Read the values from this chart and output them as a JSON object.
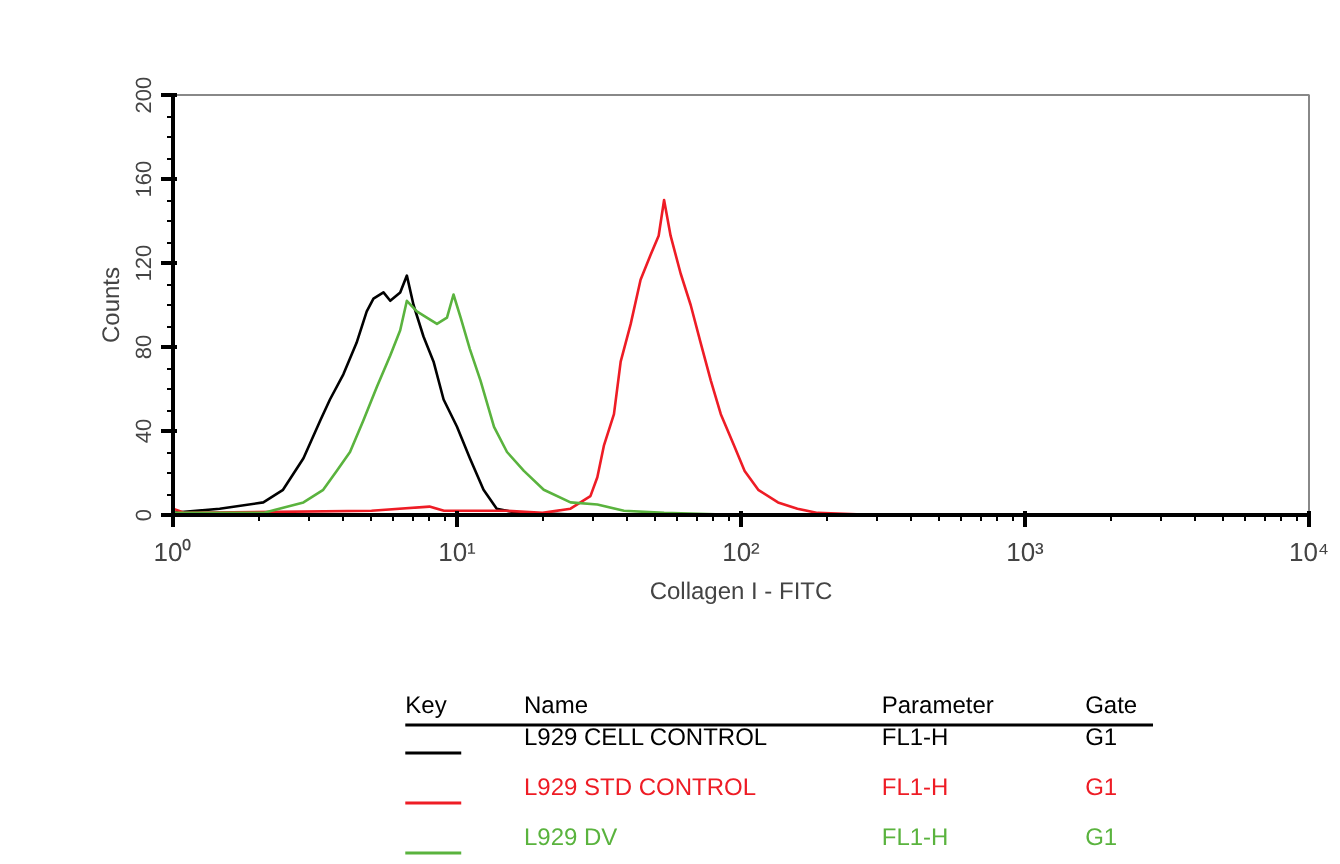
{
  "chart_data": {
    "type": "line",
    "xlabel": "Collagen I - FITC",
    "ylabel": "Counts",
    "log": "x",
    "grid": false,
    "legend": "bottom",
    "legend_title": "Key",
    "xlim": [
      1,
      10000
    ],
    "ylim": [
      0,
      200
    ],
    "xticks": [
      {
        "value": 1,
        "label": "10⁰"
      },
      {
        "value": 10,
        "label": "10¹"
      },
      {
        "value": 100,
        "label": "10²"
      },
      {
        "value": 1000,
        "label": "10³"
      },
      {
        "value": 10000,
        "label": "10⁴"
      }
    ],
    "yticks": [
      0,
      40,
      80,
      120,
      160,
      200
    ],
    "series": [
      {
        "name": "L929 CELL CONTROL",
        "color": "#000000",
        "x": [
          1.0,
          1.46,
          2.08,
          2.44,
          2.88,
          3.3,
          3.57,
          3.98,
          4.43,
          4.81,
          5.08,
          5.51,
          5.82,
          6.31,
          6.66,
          7.03,
          7.62,
          8.27,
          8.97,
          10.0,
          11.1,
          12.4,
          13.8,
          16.3,
          30,
          100,
          1000,
          10000
        ],
        "values": [
          1,
          3,
          6,
          12,
          27,
          45,
          55,
          67,
          82,
          97,
          103,
          106,
          102,
          106,
          114,
          100,
          85,
          73,
          55,
          42,
          27,
          12,
          3,
          1,
          0,
          0,
          0,
          0
        ]
      },
      {
        "name": "L929 STD CONTROL",
        "color": "#ee1c25",
        "x": [
          1.0,
          1.1,
          5,
          8,
          9,
          15,
          20,
          25.1,
          29.5,
          31.2,
          32.9,
          35.7,
          37.7,
          40.9,
          44.3,
          48.1,
          51.3,
          53.6,
          56.5,
          61.3,
          66.5,
          72.1,
          78.3,
          84.9,
          94.6,
          103,
          115,
          135,
          158,
          186,
          300,
          1000,
          10000
        ],
        "values": [
          3,
          1,
          2,
          4,
          2,
          2,
          1,
          3,
          9,
          18,
          33,
          48,
          73,
          91,
          112,
          124,
          133,
          150,
          133,
          115,
          100,
          82,
          64,
          48,
          33,
          21,
          12,
          6,
          3,
          1,
          0,
          0,
          0
        ]
      },
      {
        "name": "L929 DV",
        "color": "#5ab33e",
        "x": [
          1.0,
          2.08,
          2.88,
          3.38,
          3.77,
          4.2,
          4.68,
          5.22,
          5.82,
          6.31,
          6.66,
          7.22,
          7.83,
          8.5,
          9.22,
          9.72,
          10.3,
          11.1,
          12.1,
          13.5,
          15.0,
          17.2,
          20.2,
          25.1,
          31.2,
          38.7,
          53.6,
          100,
          1000,
          10000
        ],
        "values": [
          1,
          1,
          6,
          12,
          21,
          30,
          45,
          61,
          76,
          88,
          102,
          97,
          94,
          91,
          94,
          105,
          94,
          79,
          64,
          42,
          30,
          21,
          12,
          6,
          5,
          2,
          1,
          0,
          0,
          0
        ]
      }
    ],
    "annotations": [
      "Name",
      "Parameter",
      "Gate",
      "FL1-H",
      "G1",
      "FL1-H",
      "G1",
      "FL1-H",
      "G1"
    ]
  }
}
